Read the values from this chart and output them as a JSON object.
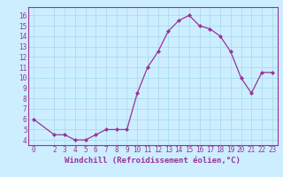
{
  "x": [
    0,
    2,
    3,
    4,
    5,
    6,
    7,
    8,
    9,
    10,
    11,
    12,
    13,
    14,
    15,
    16,
    17,
    18,
    19,
    20,
    21,
    22,
    23
  ],
  "y": [
    6.0,
    4.5,
    4.5,
    4.0,
    4.0,
    4.5,
    5.0,
    5.0,
    5.0,
    8.5,
    11.0,
    12.5,
    14.5,
    15.5,
    16.0,
    15.0,
    14.7,
    14.0,
    12.5,
    10.0,
    8.5,
    10.5,
    10.5
  ],
  "line_color": "#993399",
  "marker": "D",
  "marker_size": 2.0,
  "bg_color": "#cceeff",
  "grid_color": "#aaddee",
  "xlabel": "Windchill (Refroidissement éolien,°C)",
  "xlabel_color": "#993399",
  "tick_color": "#993399",
  "label_color": "#993399",
  "ylim": [
    3.5,
    16.8
  ],
  "xlim": [
    -0.5,
    23.5
  ],
  "yticks": [
    4,
    5,
    6,
    7,
    8,
    9,
    10,
    11,
    12,
    13,
    14,
    15,
    16
  ],
  "xticks": [
    0,
    2,
    3,
    4,
    5,
    6,
    7,
    8,
    9,
    10,
    11,
    12,
    13,
    14,
    15,
    16,
    17,
    18,
    19,
    20,
    21,
    22,
    23
  ],
  "tick_fontsize": 5.5,
  "xlabel_fontsize": 6.5,
  "spine_color": "#993399"
}
